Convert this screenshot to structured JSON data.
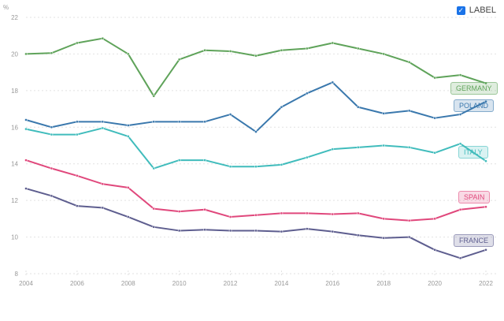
{
  "legend": {
    "checkbox_label": "LABEL",
    "checked": true
  },
  "chart_data": {
    "type": "line",
    "title": "",
    "xlabel": "",
    "ylabel": "%",
    "x": [
      2004,
      2005,
      2006,
      2007,
      2008,
      2009,
      2010,
      2011,
      2012,
      2013,
      2014,
      2015,
      2016,
      2017,
      2018,
      2019,
      2020,
      2021,
      2022
    ],
    "xticks": [
      2004,
      2006,
      2008,
      2010,
      2012,
      2014,
      2016,
      2018,
      2020,
      2022
    ],
    "yticks": [
      8,
      10,
      12,
      14,
      16,
      18,
      20,
      22
    ],
    "xlim": [
      2004,
      2022
    ],
    "ylim": [
      8,
      22
    ],
    "grid": true,
    "series": [
      {
        "name": "GERMANY",
        "color": "#5fa35a",
        "values": [
          20.0,
          20.05,
          20.6,
          20.85,
          20.0,
          17.7,
          19.7,
          20.2,
          20.15,
          19.9,
          20.2,
          20.3,
          20.6,
          20.3,
          20.0,
          19.55,
          18.7,
          18.85,
          18.4
        ]
      },
      {
        "name": "POLAND",
        "color": "#3a78ad",
        "values": [
          16.4,
          16.0,
          16.3,
          16.3,
          16.1,
          16.3,
          16.3,
          16.3,
          16.7,
          15.75,
          17.1,
          17.85,
          18.45,
          17.1,
          16.75,
          16.9,
          16.5,
          16.7,
          17.4
        ]
      },
      {
        "name": "ITALY",
        "color": "#40bcbc",
        "values": [
          15.9,
          15.6,
          15.6,
          15.95,
          15.5,
          13.75,
          14.2,
          14.2,
          13.85,
          13.85,
          13.95,
          14.35,
          14.8,
          14.9,
          15.0,
          14.9,
          14.6,
          15.1,
          14.15
        ]
      },
      {
        "name": "SPAIN",
        "color": "#e0487c",
        "values": [
          14.2,
          13.75,
          13.35,
          12.9,
          12.7,
          11.55,
          11.4,
          11.5,
          11.1,
          11.2,
          11.3,
          11.3,
          11.25,
          11.3,
          11.0,
          10.9,
          11.0,
          11.5,
          11.65
        ]
      },
      {
        "name": "FRANCE",
        "color": "#5e5e8f",
        "values": [
          12.65,
          12.25,
          11.7,
          11.6,
          11.1,
          10.55,
          10.35,
          10.4,
          10.35,
          10.35,
          10.3,
          10.45,
          10.3,
          10.1,
          9.95,
          10.0,
          9.3,
          8.85,
          9.3
        ]
      }
    ]
  }
}
